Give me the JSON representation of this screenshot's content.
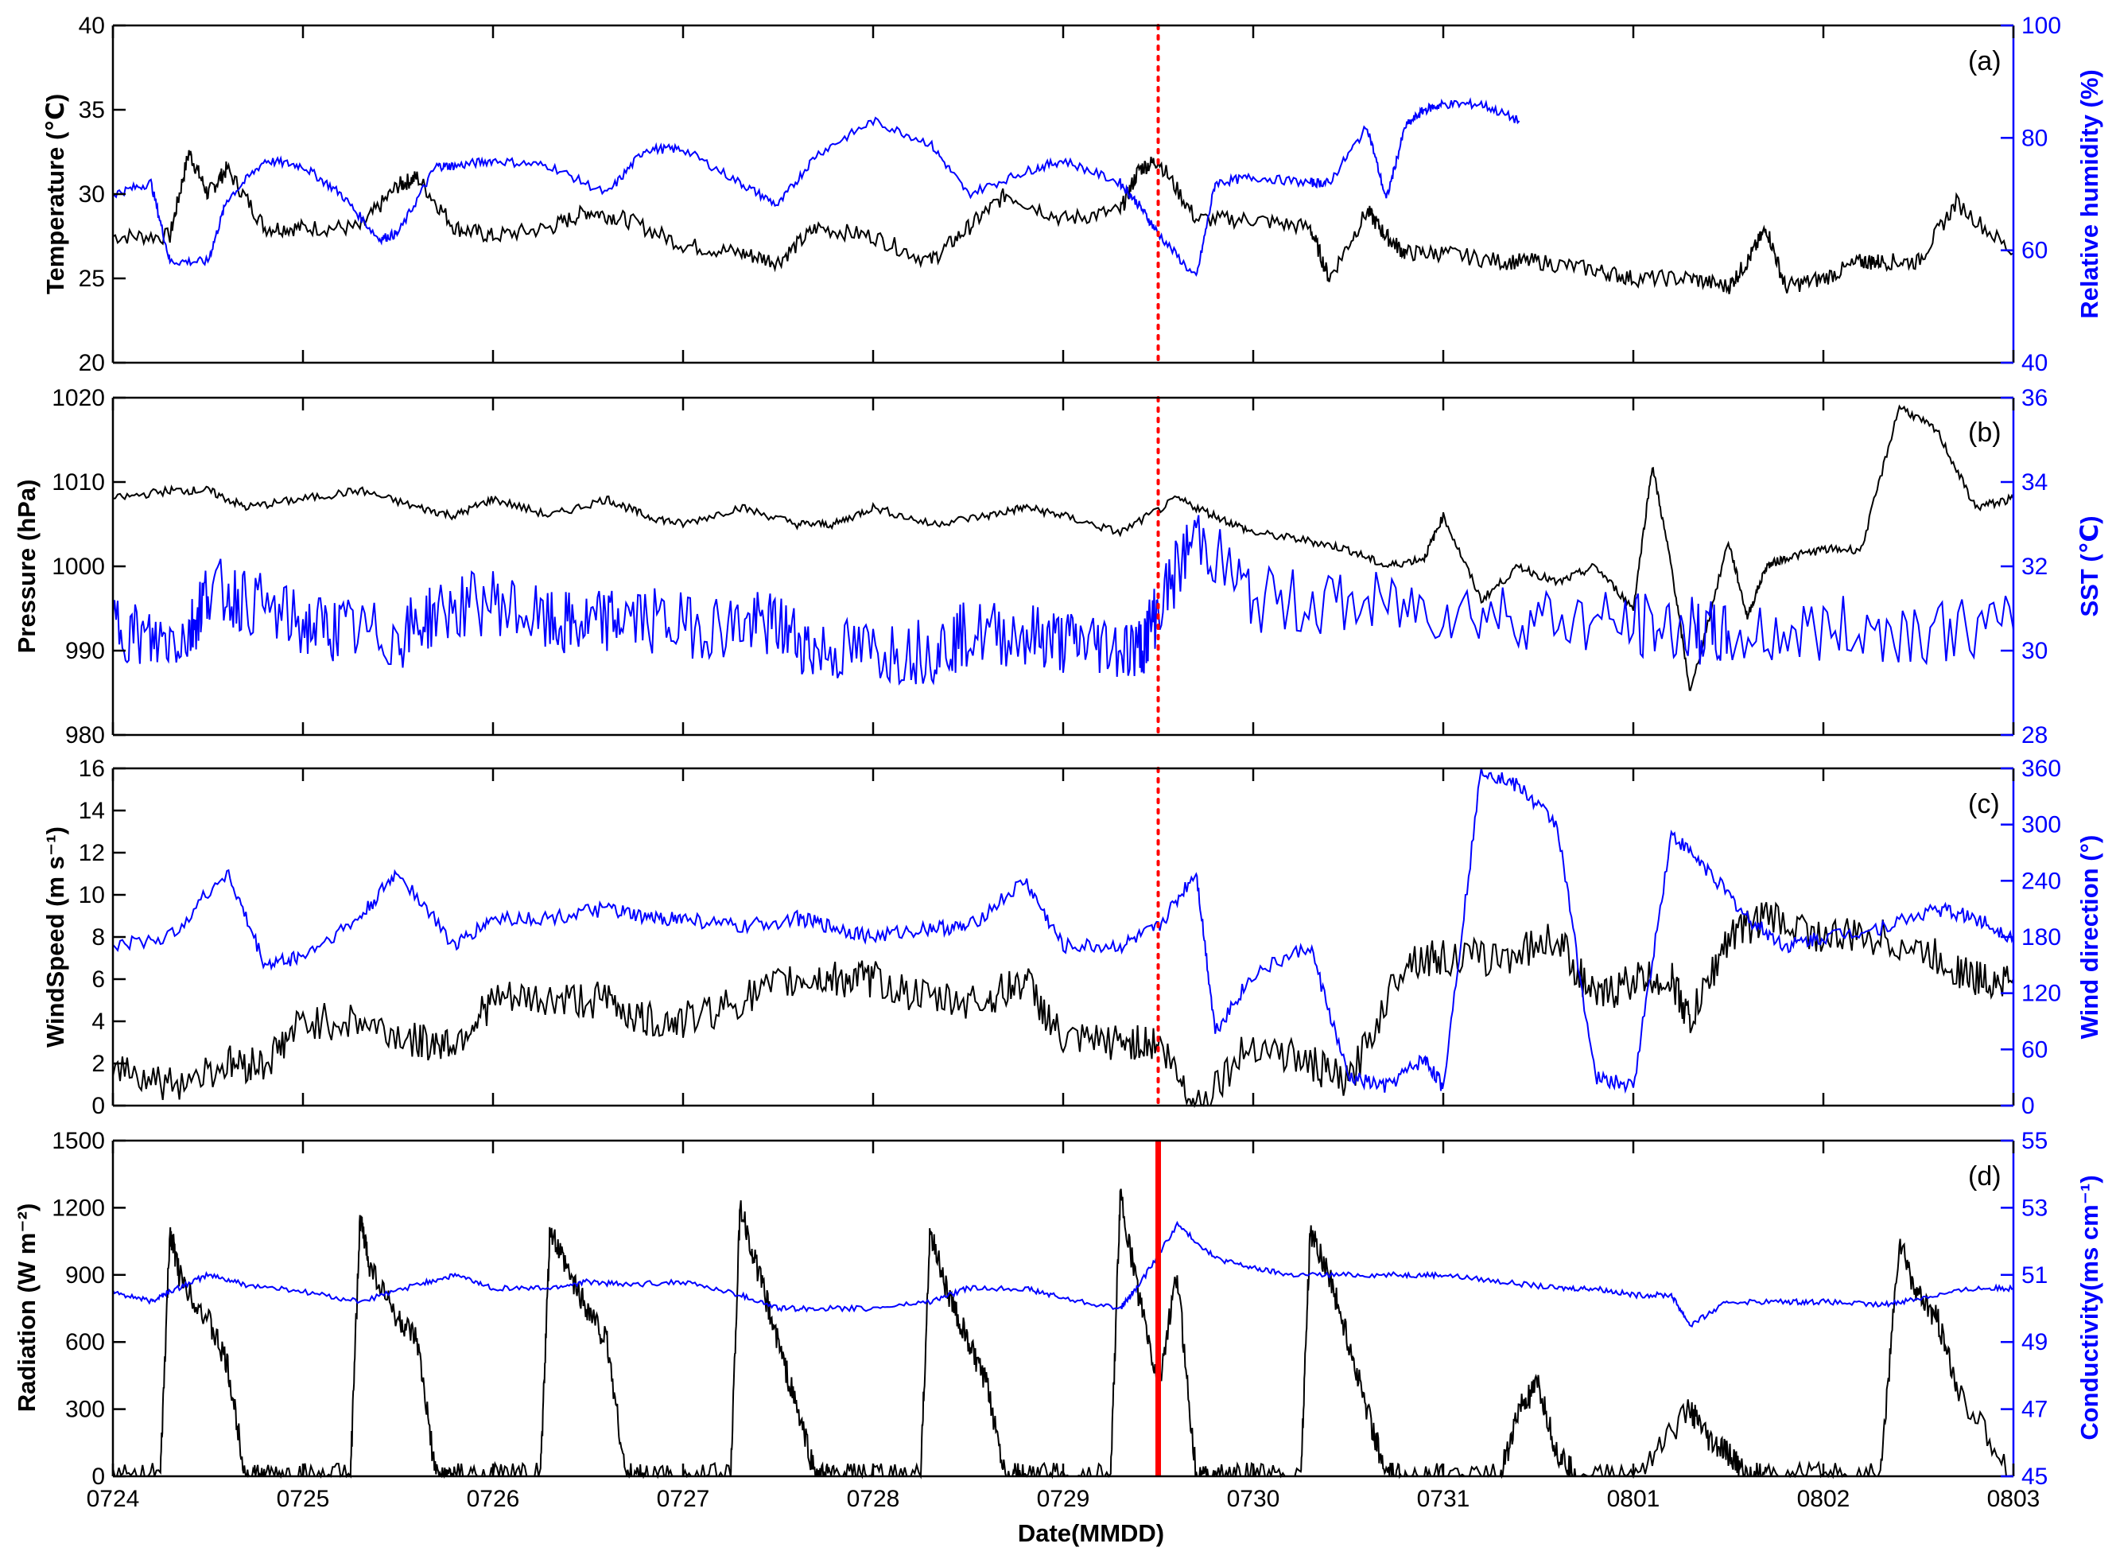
{
  "colors": {
    "left": "#000000",
    "right": "#0000ff",
    "event_line": "#ff0000"
  },
  "chart_data": [
    {
      "type": "line",
      "panel": "(a)",
      "xlabel": "",
      "xlim": [
        "0724",
        "0803"
      ],
      "x_ticks": [
        "0724",
        "0725",
        "0726",
        "0727",
        "0728",
        "0729",
        "0730",
        "0731",
        "0801",
        "0802",
        "0803"
      ],
      "left_axis": {
        "label": "Temperature (℃)",
        "ylim": [
          20,
          40
        ],
        "ticks": [
          "20",
          "25",
          "30",
          "35",
          "40"
        ]
      },
      "right_axis": {
        "label": "Relative humidity (%)",
        "ylim": [
          40,
          100
        ],
        "ticks": [
          "40",
          "60",
          "80",
          "100"
        ]
      },
      "series": [
        {
          "axis": "left",
          "color": "#000000",
          "x": [
            0,
            0.3,
            0.4,
            0.5,
            0.6,
            0.8,
            1.0,
            1.3,
            1.5,
            1.6,
            1.8,
            2.0,
            2.3,
            2.5,
            2.7,
            3.0,
            3.3,
            3.5,
            3.7,
            4.0,
            4.3,
            4.5,
            4.7,
            5.0,
            5.3,
            5.4,
            5.5,
            5.7,
            6.0,
            6.3,
            6.4,
            6.6,
            6.7,
            6.8,
            7.0,
            7.3,
            7.5,
            7.8,
            8.0,
            8.3,
            8.5,
            8.6,
            8.7,
            8.8,
            9.0,
            9.2,
            9.3,
            9.5,
            9.7,
            10.0
          ],
          "values": [
            27.5,
            27.5,
            32.5,
            30,
            31.5,
            28,
            28,
            28,
            30.5,
            31,
            28,
            27.5,
            28,
            29,
            28.5,
            27,
            26.5,
            26,
            28,
            27.5,
            26,
            28,
            30,
            28.5,
            29,
            31.5,
            32,
            28.5,
            28.5,
            28,
            25,
            29,
            27.5,
            26.5,
            26.5,
            26,
            26,
            25.5,
            25,
            25,
            24.5,
            26,
            28,
            24.5,
            25,
            26,
            26,
            26,
            29.5,
            26.5
          ]
        },
        {
          "axis": "right",
          "color": "#0000ff",
          "x": [
            0,
            0.2,
            0.3,
            0.5,
            0.6,
            0.8,
            1.0,
            1.2,
            1.4,
            1.5,
            1.7,
            1.8,
            2.0,
            2.3,
            2.6,
            2.8,
            3.0,
            3.3,
            3.5,
            3.7,
            4.0,
            4.3,
            4.5,
            4.8,
            5.0,
            5.3,
            5.4,
            5.5,
            5.7,
            5.8,
            6.0,
            6.3,
            6.4,
            6.6,
            6.7,
            6.8,
            6.9,
            7.0,
            7.2,
            7.4
          ],
          "values": [
            70,
            72,
            58,
            58,
            69,
            76,
            75,
            70,
            62,
            63,
            75,
            75,
            76,
            75,
            70,
            78,
            78,
            72,
            68,
            77,
            83,
            79,
            70,
            74,
            76,
            72,
            68,
            63,
            55,
            72,
            73,
            72,
            72,
            82,
            69,
            82,
            85,
            86,
            86,
            83
          ]
        }
      ]
    },
    {
      "type": "line",
      "panel": "(b)",
      "xlabel": "",
      "xlim": [
        "0724",
        "0803"
      ],
      "x_ticks": [
        "0724",
        "0725",
        "0726",
        "0727",
        "0728",
        "0729",
        "0730",
        "0731",
        "0801",
        "0802",
        "0803"
      ],
      "left_axis": {
        "label": "Pressure (hPa)",
        "ylim": [
          980,
          1020
        ],
        "ticks": [
          "980",
          "990",
          "1000",
          "1010",
          "1020"
        ]
      },
      "right_axis": {
        "label": "SST (℃)",
        "ylim": [
          28,
          36
        ],
        "ticks": [
          "28",
          "30",
          "32",
          "34",
          "36"
        ]
      },
      "series": [
        {
          "axis": "left",
          "color": "#000000",
          "x": [
            0,
            0.3,
            0.5,
            0.7,
            1.0,
            1.3,
            1.6,
            1.8,
            2.0,
            2.3,
            2.6,
            2.8,
            3.0,
            3.3,
            3.6,
            3.8,
            4.0,
            4.3,
            4.6,
            4.8,
            5.0,
            5.3,
            5.6,
            5.8,
            6.0,
            6.3,
            6.5,
            6.7,
            6.9,
            7.0,
            7.2,
            7.4,
            7.6,
            7.8,
            8.0,
            8.1,
            8.2,
            8.3,
            8.5,
            8.6,
            8.7,
            8.8,
            9.0,
            9.2,
            9.4,
            9.6,
            9.8,
            10.0
          ],
          "values": [
            1008,
            1009,
            1009,
            1007,
            1008,
            1009,
            1007,
            1006,
            1008,
            1006,
            1008,
            1006,
            1005,
            1007,
            1005,
            1005,
            1007,
            1005,
            1006,
            1007,
            1006,
            1004,
            1008,
            1006,
            1004,
            1003,
            1002,
            1000,
            1001,
            1006,
            996,
            1000,
            998,
            1000,
            995,
            1012,
            1000,
            985,
            1003,
            994,
            1000,
            1001,
            1002,
            1002,
            1019,
            1016,
            1007,
            1008
          ]
        },
        {
          "axis": "right",
          "color": "#0000ff",
          "x": [
            0,
            0.2,
            0.4,
            0.5,
            0.7,
            1.0,
            1.2,
            1.5,
            1.7,
            2.0,
            2.3,
            2.5,
            2.7,
            3.0,
            3.3,
            3.5,
            3.7,
            4.0,
            4.3,
            4.5,
            4.8,
            5.0,
            5.2,
            5.4,
            5.5,
            5.7,
            6.0,
            6.5,
            7.0,
            7.5,
            8.0,
            8.3,
            8.5,
            9.0,
            9.5,
            10.0
          ],
          "values": [
            30.7,
            30.2,
            30.4,
            31.5,
            31.2,
            30.6,
            30.5,
            30.3,
            30.9,
            31.2,
            30.6,
            30.6,
            30.8,
            30.6,
            30.6,
            30.6,
            30.0,
            30.0,
            30.0,
            30.4,
            30.4,
            30.2,
            30.2,
            30.0,
            31.0,
            32.8,
            31.2,
            31.1,
            31.0,
            30.8,
            30.6,
            30.5,
            30.3,
            30.5,
            30.5,
            30.5
          ]
        }
      ]
    },
    {
      "type": "line",
      "panel": "(c)",
      "xlabel": "",
      "xlim": [
        "0724",
        "0803"
      ],
      "x_ticks": [
        "0724",
        "0725",
        "0726",
        "0727",
        "0728",
        "0729",
        "0730",
        "0731",
        "0801",
        "0802",
        "0803"
      ],
      "left_axis": {
        "label": "WindSpeed (m s⁻¹)",
        "ylim": [
          0,
          16
        ],
        "ticks": [
          "0",
          "2",
          "4",
          "6",
          "8",
          "10",
          "12",
          "14",
          "16"
        ]
      },
      "right_axis": {
        "label": "Wind direction (°)",
        "ylim": [
          0,
          360
        ],
        "ticks": [
          "0",
          "60",
          "120",
          "180",
          "240",
          "300",
          "360"
        ]
      },
      "series": [
        {
          "axis": "left",
          "color": "#000000",
          "x": [
            0,
            0.3,
            0.6,
            0.8,
            1.0,
            1.3,
            1.6,
            1.8,
            2.0,
            2.3,
            2.6,
            2.8,
            3.0,
            3.3,
            3.6,
            3.8,
            4.0,
            4.3,
            4.6,
            4.8,
            5.0,
            5.3,
            5.5,
            5.7,
            6.0,
            6.3,
            6.5,
            6.8,
            7.0,
            7.3,
            7.6,
            7.8,
            8.0,
            8.2,
            8.3,
            8.5,
            8.7,
            9.0,
            9.3,
            9.6,
            9.8,
            10.0
          ],
          "values": [
            2,
            1,
            2,
            2,
            4,
            4,
            3,
            3,
            5,
            5,
            5,
            4,
            4,
            5,
            6,
            6,
            6,
            5,
            5,
            6,
            3,
            3,
            3,
            0,
            3,
            2,
            1,
            7,
            7,
            7,
            8,
            5,
            6,
            6,
            4,
            8,
            9,
            8,
            8,
            7,
            6,
            6
          ]
        },
        {
          "axis": "right",
          "color": "#0000ff",
          "x": [
            0,
            0.3,
            0.6,
            0.8,
            1.0,
            1.3,
            1.5,
            1.8,
            2.0,
            2.3,
            2.6,
            2.8,
            3.0,
            3.3,
            3.6,
            3.8,
            4.0,
            4.3,
            4.5,
            4.8,
            5.0,
            5.3,
            5.5,
            5.7,
            5.8,
            6.0,
            6.3,
            6.5,
            6.7,
            6.9,
            7.0,
            7.2,
            7.4,
            7.6,
            7.8,
            8.0,
            8.2,
            8.4,
            8.6,
            8.8,
            9.0,
            9.3,
            9.6,
            9.8,
            10.0
          ],
          "values": [
            170,
            180,
            250,
            150,
            160,
            200,
            250,
            170,
            200,
            200,
            210,
            200,
            200,
            190,
            200,
            190,
            180,
            190,
            190,
            240,
            170,
            170,
            190,
            250,
            80,
            140,
            170,
            30,
            20,
            50,
            20,
            360,
            340,
            300,
            30,
            20,
            290,
            250,
            200,
            170,
            180,
            190,
            210,
            200,
            180
          ]
        }
      ]
    },
    {
      "type": "line",
      "panel": "(d)",
      "xlabel": "Date(MMDD)",
      "xlim": [
        "0724",
        "0803"
      ],
      "x_ticks": [
        "0724",
        "0725",
        "0726",
        "0727",
        "0728",
        "0729",
        "0730",
        "0731",
        "0801",
        "0802",
        "0803"
      ],
      "left_axis": {
        "label": "Radiation (W m⁻²)",
        "ylim": [
          0,
          1500
        ],
        "ticks": [
          "0",
          "300",
          "600",
          "900",
          "1200",
          "1500"
        ]
      },
      "right_axis": {
        "label": "Conductivity(ms cm⁻¹)",
        "ylim": [
          45,
          55
        ],
        "ticks": [
          "45",
          "47",
          "49",
          "51",
          "53",
          "55"
        ]
      },
      "series": [
        {
          "axis": "left",
          "color": "#000000",
          "x": [
            0,
            0.25,
            0.3,
            0.35,
            0.5,
            0.6,
            0.7,
            0.8,
            1.0,
            1.25,
            1.3,
            1.35,
            1.5,
            1.6,
            1.7,
            1.8,
            2.0,
            2.25,
            2.3,
            2.4,
            2.5,
            2.6,
            2.7,
            2.8,
            3.0,
            3.25,
            3.3,
            3.4,
            3.5,
            3.6,
            3.7,
            3.8,
            4.0,
            4.25,
            4.3,
            4.4,
            4.5,
            4.6,
            4.7,
            4.8,
            5.0,
            5.25,
            5.3,
            5.4,
            5.5,
            5.6,
            5.7,
            5.8,
            6.0,
            6.25,
            6.3,
            6.4,
            6.5,
            6.6,
            6.7,
            6.8,
            7.0,
            7.3,
            7.4,
            7.5,
            7.6,
            7.7,
            8.0,
            8.3,
            8.4,
            8.5,
            8.6,
            8.7,
            9.0,
            9.3,
            9.4,
            9.5,
            9.6,
            9.7,
            10.0
          ],
          "values": [
            0,
            0,
            1100,
            900,
            700,
            500,
            0,
            0,
            0,
            0,
            1150,
            950,
            700,
            600,
            0,
            0,
            0,
            0,
            1100,
            900,
            750,
            600,
            0,
            0,
            0,
            0,
            1200,
            900,
            600,
            300,
            0,
            0,
            0,
            0,
            1100,
            800,
            600,
            400,
            0,
            0,
            0,
            0,
            1250,
            800,
            400,
            900,
            0,
            0,
            0,
            0,
            1100,
            900,
            600,
            300,
            0,
            0,
            0,
            0,
            300,
            400,
            100,
            0,
            0,
            300,
            150,
            100,
            0,
            0,
            0,
            0,
            1050,
            800,
            700,
            400,
            0
          ]
        },
        {
          "axis": "right",
          "color": "#0000ff",
          "x": [
            0,
            0.2,
            0.3,
            0.5,
            0.7,
            1.0,
            1.3,
            1.6,
            1.8,
            2.0,
            2.3,
            2.5,
            2.7,
            3.0,
            3.3,
            3.5,
            3.7,
            4.0,
            4.3,
            4.5,
            4.8,
            5.0,
            5.3,
            5.4,
            5.6,
            5.8,
            6.0,
            6.2,
            6.5,
            6.8,
            7.0,
            7.3,
            7.6,
            7.8,
            8.0,
            8.2,
            8.3,
            8.5,
            8.8,
            9.0,
            9.3,
            9.5,
            9.8,
            10.0
          ],
          "values": [
            50.5,
            50.2,
            50.5,
            51.0,
            50.7,
            50.5,
            50.2,
            50.7,
            51.0,
            50.6,
            50.6,
            50.8,
            50.7,
            50.8,
            50.4,
            50.0,
            50.0,
            50.0,
            50.2,
            50.6,
            50.6,
            50.3,
            50.0,
            50.7,
            52.5,
            51.5,
            51.2,
            51.0,
            51.0,
            51.0,
            51.0,
            50.8,
            50.6,
            50.6,
            50.4,
            50.4,
            49.5,
            50.2,
            50.2,
            50.2,
            50.1,
            50.3,
            50.6,
            50.6
          ]
        }
      ]
    }
  ],
  "event_marker": {
    "x": 5.5
  }
}
